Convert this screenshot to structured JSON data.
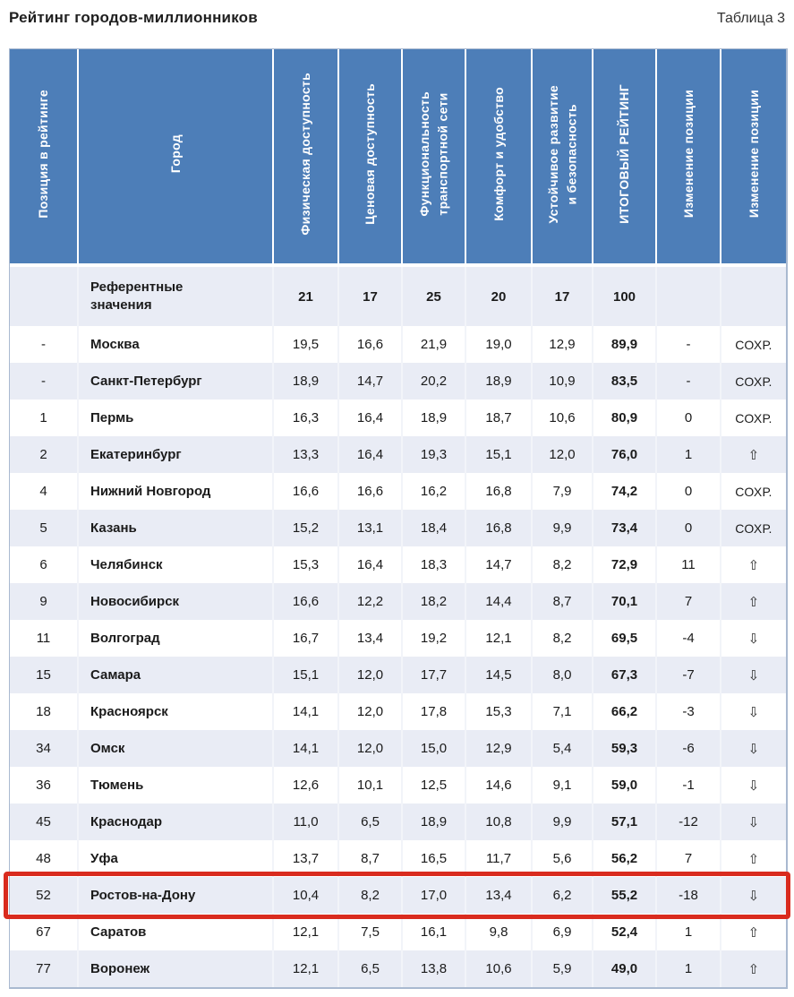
{
  "page": {
    "title": "Рейтинг городов-миллионников",
    "table_label": "Таблица 3"
  },
  "colors": {
    "header_bg": "#4d7eb8",
    "stripe_row": "#e9ecf5",
    "highlight_border": "#d92b1e"
  },
  "icons": {
    "up-arrow": "⇧",
    "down-arrow": "⇩"
  },
  "table": {
    "columns": [
      {
        "label": "Позиция в рейтинге"
      },
      {
        "label": "Город"
      },
      {
        "label": "Физическая доступность"
      },
      {
        "label": "Ценовая доступность"
      },
      {
        "label": "Функциональность\nтранспортной сети"
      },
      {
        "label": "Комфорт и удобство"
      },
      {
        "label": "Устойчивое развитие\nи безопасность"
      },
      {
        "label": "ИТОГОВЫЙ РЕЙТИНГ"
      },
      {
        "label": "Изменение позиции"
      },
      {
        "label": "Изменение позиции"
      }
    ],
    "reference_row": {
      "label": "Референтные значения",
      "values": [
        "21",
        "17",
        "25",
        "20",
        "17",
        "100"
      ]
    },
    "rows": [
      {
        "position": "-",
        "city": "Москва",
        "scores": [
          "19,5",
          "16,6",
          "21,9",
          "19,0",
          "12,9"
        ],
        "total": "89,9",
        "change": "-",
        "change_icon": null,
        "change_label": "СОХР."
      },
      {
        "position": "-",
        "city": "Санкт-Петербург",
        "scores": [
          "18,9",
          "14,7",
          "20,2",
          "18,9",
          "10,9"
        ],
        "total": "83,5",
        "change": "-",
        "change_icon": null,
        "change_label": "СОХР."
      },
      {
        "position": "1",
        "city": "Пермь",
        "scores": [
          "16,3",
          "16,4",
          "18,9",
          "18,7",
          "10,6"
        ],
        "total": "80,9",
        "change": "0",
        "change_icon": null,
        "change_label": "СОХР."
      },
      {
        "position": "2",
        "city": "Екатеринбург",
        "scores": [
          "13,3",
          "16,4",
          "19,3",
          "15,1",
          "12,0"
        ],
        "total": "76,0",
        "change": "1",
        "change_icon": "up-arrow",
        "change_label": ""
      },
      {
        "position": "4",
        "city": "Нижний Новгород",
        "scores": [
          "16,6",
          "16,6",
          "16,2",
          "16,8",
          "7,9"
        ],
        "total": "74,2",
        "change": "0",
        "change_icon": null,
        "change_label": "СОХР."
      },
      {
        "position": "5",
        "city": "Казань",
        "scores": [
          "15,2",
          "13,1",
          "18,4",
          "16,8",
          "9,9"
        ],
        "total": "73,4",
        "change": "0",
        "change_icon": null,
        "change_label": "СОХР."
      },
      {
        "position": "6",
        "city": "Челябинск",
        "scores": [
          "15,3",
          "16,4",
          "18,3",
          "14,7",
          "8,2"
        ],
        "total": "72,9",
        "change": "11",
        "change_icon": "up-arrow",
        "change_label": ""
      },
      {
        "position": "9",
        "city": "Новосибирск",
        "scores": [
          "16,6",
          "12,2",
          "18,2",
          "14,4",
          "8,7"
        ],
        "total": "70,1",
        "change": "7",
        "change_icon": "up-arrow",
        "change_label": ""
      },
      {
        "position": "11",
        "city": "Волгоград",
        "scores": [
          "16,7",
          "13,4",
          "19,2",
          "12,1",
          "8,2"
        ],
        "total": "69,5",
        "change": "-4",
        "change_icon": "down-arrow",
        "change_label": ""
      },
      {
        "position": "15",
        "city": "Самара",
        "scores": [
          "15,1",
          "12,0",
          "17,7",
          "14,5",
          "8,0"
        ],
        "total": "67,3",
        "change": "-7",
        "change_icon": "down-arrow",
        "change_label": ""
      },
      {
        "position": "18",
        "city": "Красноярск",
        "scores": [
          "14,1",
          "12,0",
          "17,8",
          "15,3",
          "7,1"
        ],
        "total": "66,2",
        "change": "-3",
        "change_icon": "down-arrow",
        "change_label": ""
      },
      {
        "position": "34",
        "city": "Омск",
        "scores": [
          "14,1",
          "12,0",
          "15,0",
          "12,9",
          "5,4"
        ],
        "total": "59,3",
        "change": "-6",
        "change_icon": "down-arrow",
        "change_label": ""
      },
      {
        "position": "36",
        "city": "Тюмень",
        "scores": [
          "12,6",
          "10,1",
          "12,5",
          "14,6",
          "9,1"
        ],
        "total": "59,0",
        "change": "-1",
        "change_icon": "down-arrow",
        "change_label": ""
      },
      {
        "position": "45",
        "city": "Краснодар",
        "scores": [
          "11,0",
          "6,5",
          "18,9",
          "10,8",
          "9,9"
        ],
        "total": "57,1",
        "change": "-12",
        "change_icon": "down-arrow",
        "change_label": ""
      },
      {
        "position": "48",
        "city": "Уфа",
        "scores": [
          "13,7",
          "8,7",
          "16,5",
          "11,7",
          "5,6"
        ],
        "total": "56,2",
        "change": "7",
        "change_icon": "up-arrow",
        "change_label": ""
      },
      {
        "position": "52",
        "city": "Ростов-на-Дону",
        "scores": [
          "10,4",
          "8,2",
          "17,0",
          "13,4",
          "6,2"
        ],
        "total": "55,2",
        "change": "-18",
        "change_icon": "down-arrow",
        "change_label": ""
      },
      {
        "position": "67",
        "city": "Саратов",
        "scores": [
          "12,1",
          "7,5",
          "16,1",
          "9,8",
          "6,9"
        ],
        "total": "52,4",
        "change": "1",
        "change_icon": "up-arrow",
        "change_label": ""
      },
      {
        "position": "77",
        "city": "Воронеж",
        "scores": [
          "12,1",
          "6,5",
          "13,8",
          "10,6",
          "5,9"
        ],
        "total": "49,0",
        "change": "1",
        "change_icon": "up-arrow",
        "change_label": ""
      }
    ],
    "highlight": {
      "city": "Ростов-на-Дону"
    }
  }
}
